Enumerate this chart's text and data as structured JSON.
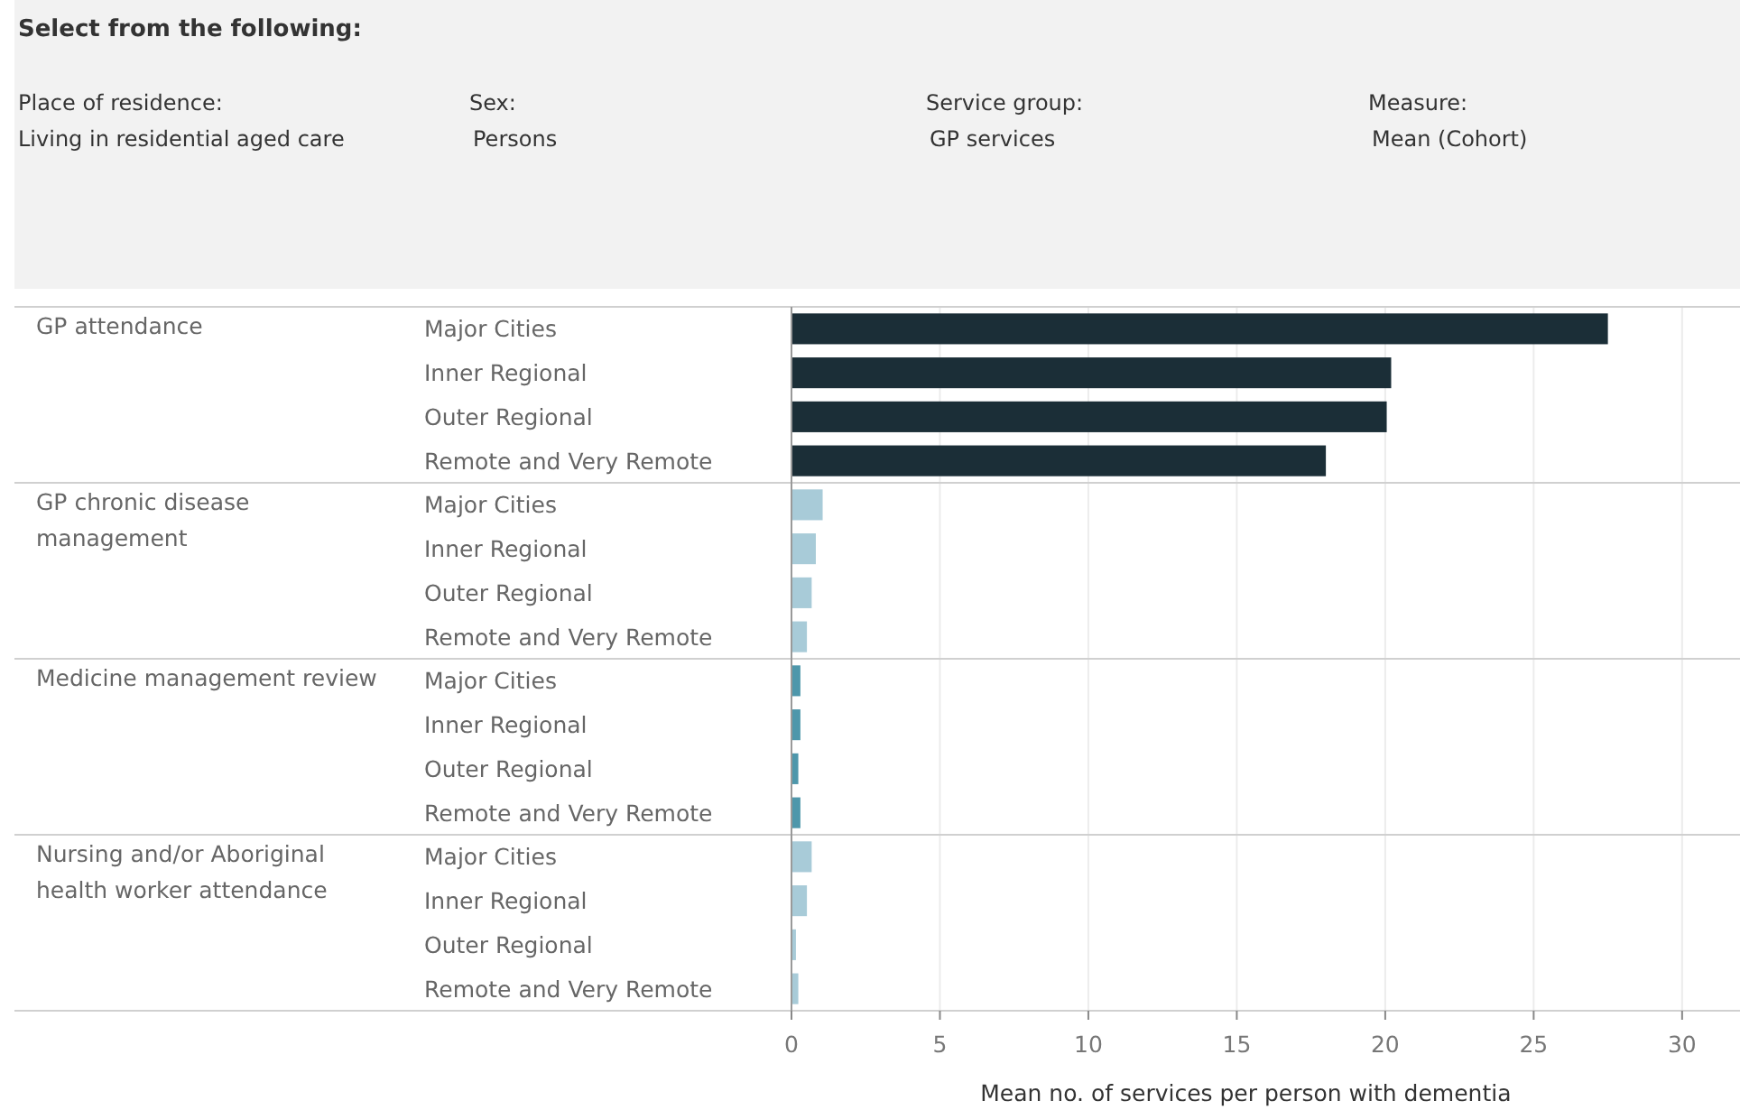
{
  "chart_data": {
    "type": "bar",
    "orientation": "horizontal",
    "title": "Select from the following:",
    "annotations": [
      "Place of residence:",
      "Living in residential aged care",
      "Sex:",
      "Persons",
      "Service group:",
      "GP services",
      "Measure:",
      "Mean (Cohort)",
      "GP attendance",
      "GP chronic disease management",
      "Medicine management review",
      "Nursing and/or Aboriginal health worker attendance"
    ],
    "xlabel": "Mean no. of services per person with dementia",
    "categories": [
      "Major Cities",
      "Inner Regional",
      "Outer Regional",
      "Remote and Very Remote",
      "Major Cities",
      "Inner Regional",
      "Outer Regional",
      "Remote and Very Remote",
      "Major Cities",
      "Inner Regional",
      "Outer Regional",
      "Remote and Very Remote",
      "Major Cities",
      "Inner Regional",
      "Outer Regional",
      "Remote and Very Remote"
    ],
    "values": [
      27.5,
      20.2,
      20.05,
      18.0,
      1.05,
      0.82,
      0.68,
      0.52,
      0.3,
      0.3,
      0.23,
      0.3,
      0.68,
      0.52,
      0.15,
      0.23
    ],
    "colors": [
      "#1b2e37",
      "#1b2e37",
      "#1b2e37",
      "#1b2e37",
      "#a8cbd8",
      "#a8cbd8",
      "#a8cbd8",
      "#a8cbd8",
      "#4e97ab",
      "#4e97ab",
      "#4e97ab",
      "#4e97ab",
      "#a8cbd8",
      "#a8cbd8",
      "#a8cbd8",
      "#a8cbd8"
    ],
    "xlim": [
      0,
      31.95
    ],
    "xticks": [
      0,
      5,
      10,
      15,
      20,
      25,
      30
    ],
    "grid": "x"
  }
}
